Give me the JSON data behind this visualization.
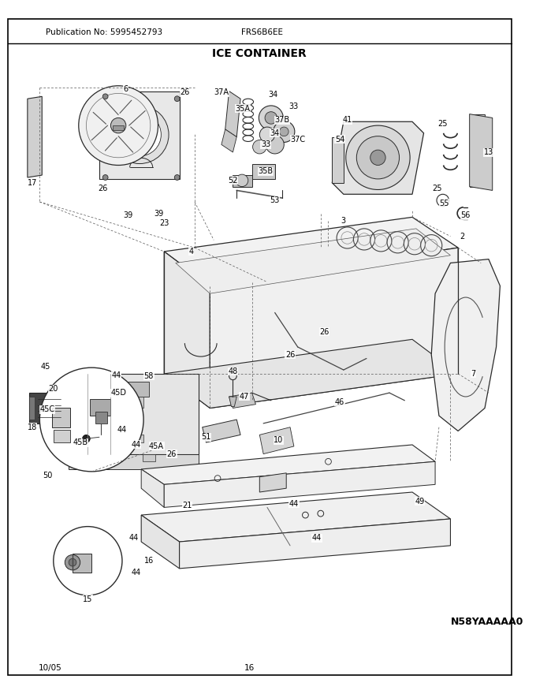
{
  "title": "ICE CONTAINER",
  "pub_no": "Publication No: 5995452793",
  "model": "FRS6B6EE",
  "date": "10/05",
  "page": "16",
  "diagram_code": "N58YAAAAA0",
  "bg_color": "#ffffff",
  "text_color": "#000000",
  "line_color": "#2a2a2a",
  "header_fontsize": 7.5,
  "title_fontsize": 10,
  "label_fontsize": 7.0,
  "small_fontsize": 7.5,
  "bold_fontsize": 9.0
}
